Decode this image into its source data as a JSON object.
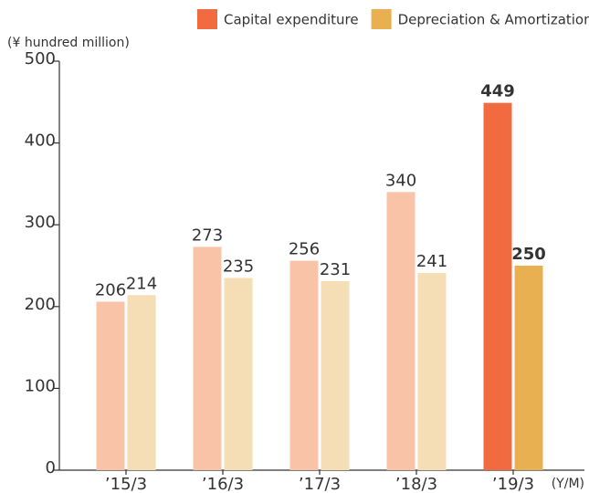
{
  "chart_data": {
    "type": "bar",
    "y_unit_label": "(¥ hundred million)",
    "x_unit_label": "(Y/M)",
    "categories": [
      "’15/3",
      "’16/3",
      "’17/3",
      "’18/3",
      "’19/3"
    ],
    "series": [
      {
        "name": "Capital expenditure",
        "color": "#f26b40",
        "bar_colors": [
          "#f9c3a8",
          "#f9c3a8",
          "#f9c3a8",
          "#f9c3a8",
          "#f26b40"
        ],
        "values": [
          206,
          273,
          256,
          340,
          449
        ]
      },
      {
        "name": "Depreciation & Amortization",
        "color": "#e8b050",
        "bar_colors": [
          "#f5ddb5",
          "#f5ddb5",
          "#f5ddb5",
          "#f5ddb5",
          "#e8b050"
        ],
        "values": [
          214,
          235,
          231,
          241,
          250
        ]
      }
    ],
    "ylim": [
      0,
      500
    ],
    "yticks": [
      0,
      100,
      200,
      300,
      400,
      500
    ],
    "grid": false
  }
}
